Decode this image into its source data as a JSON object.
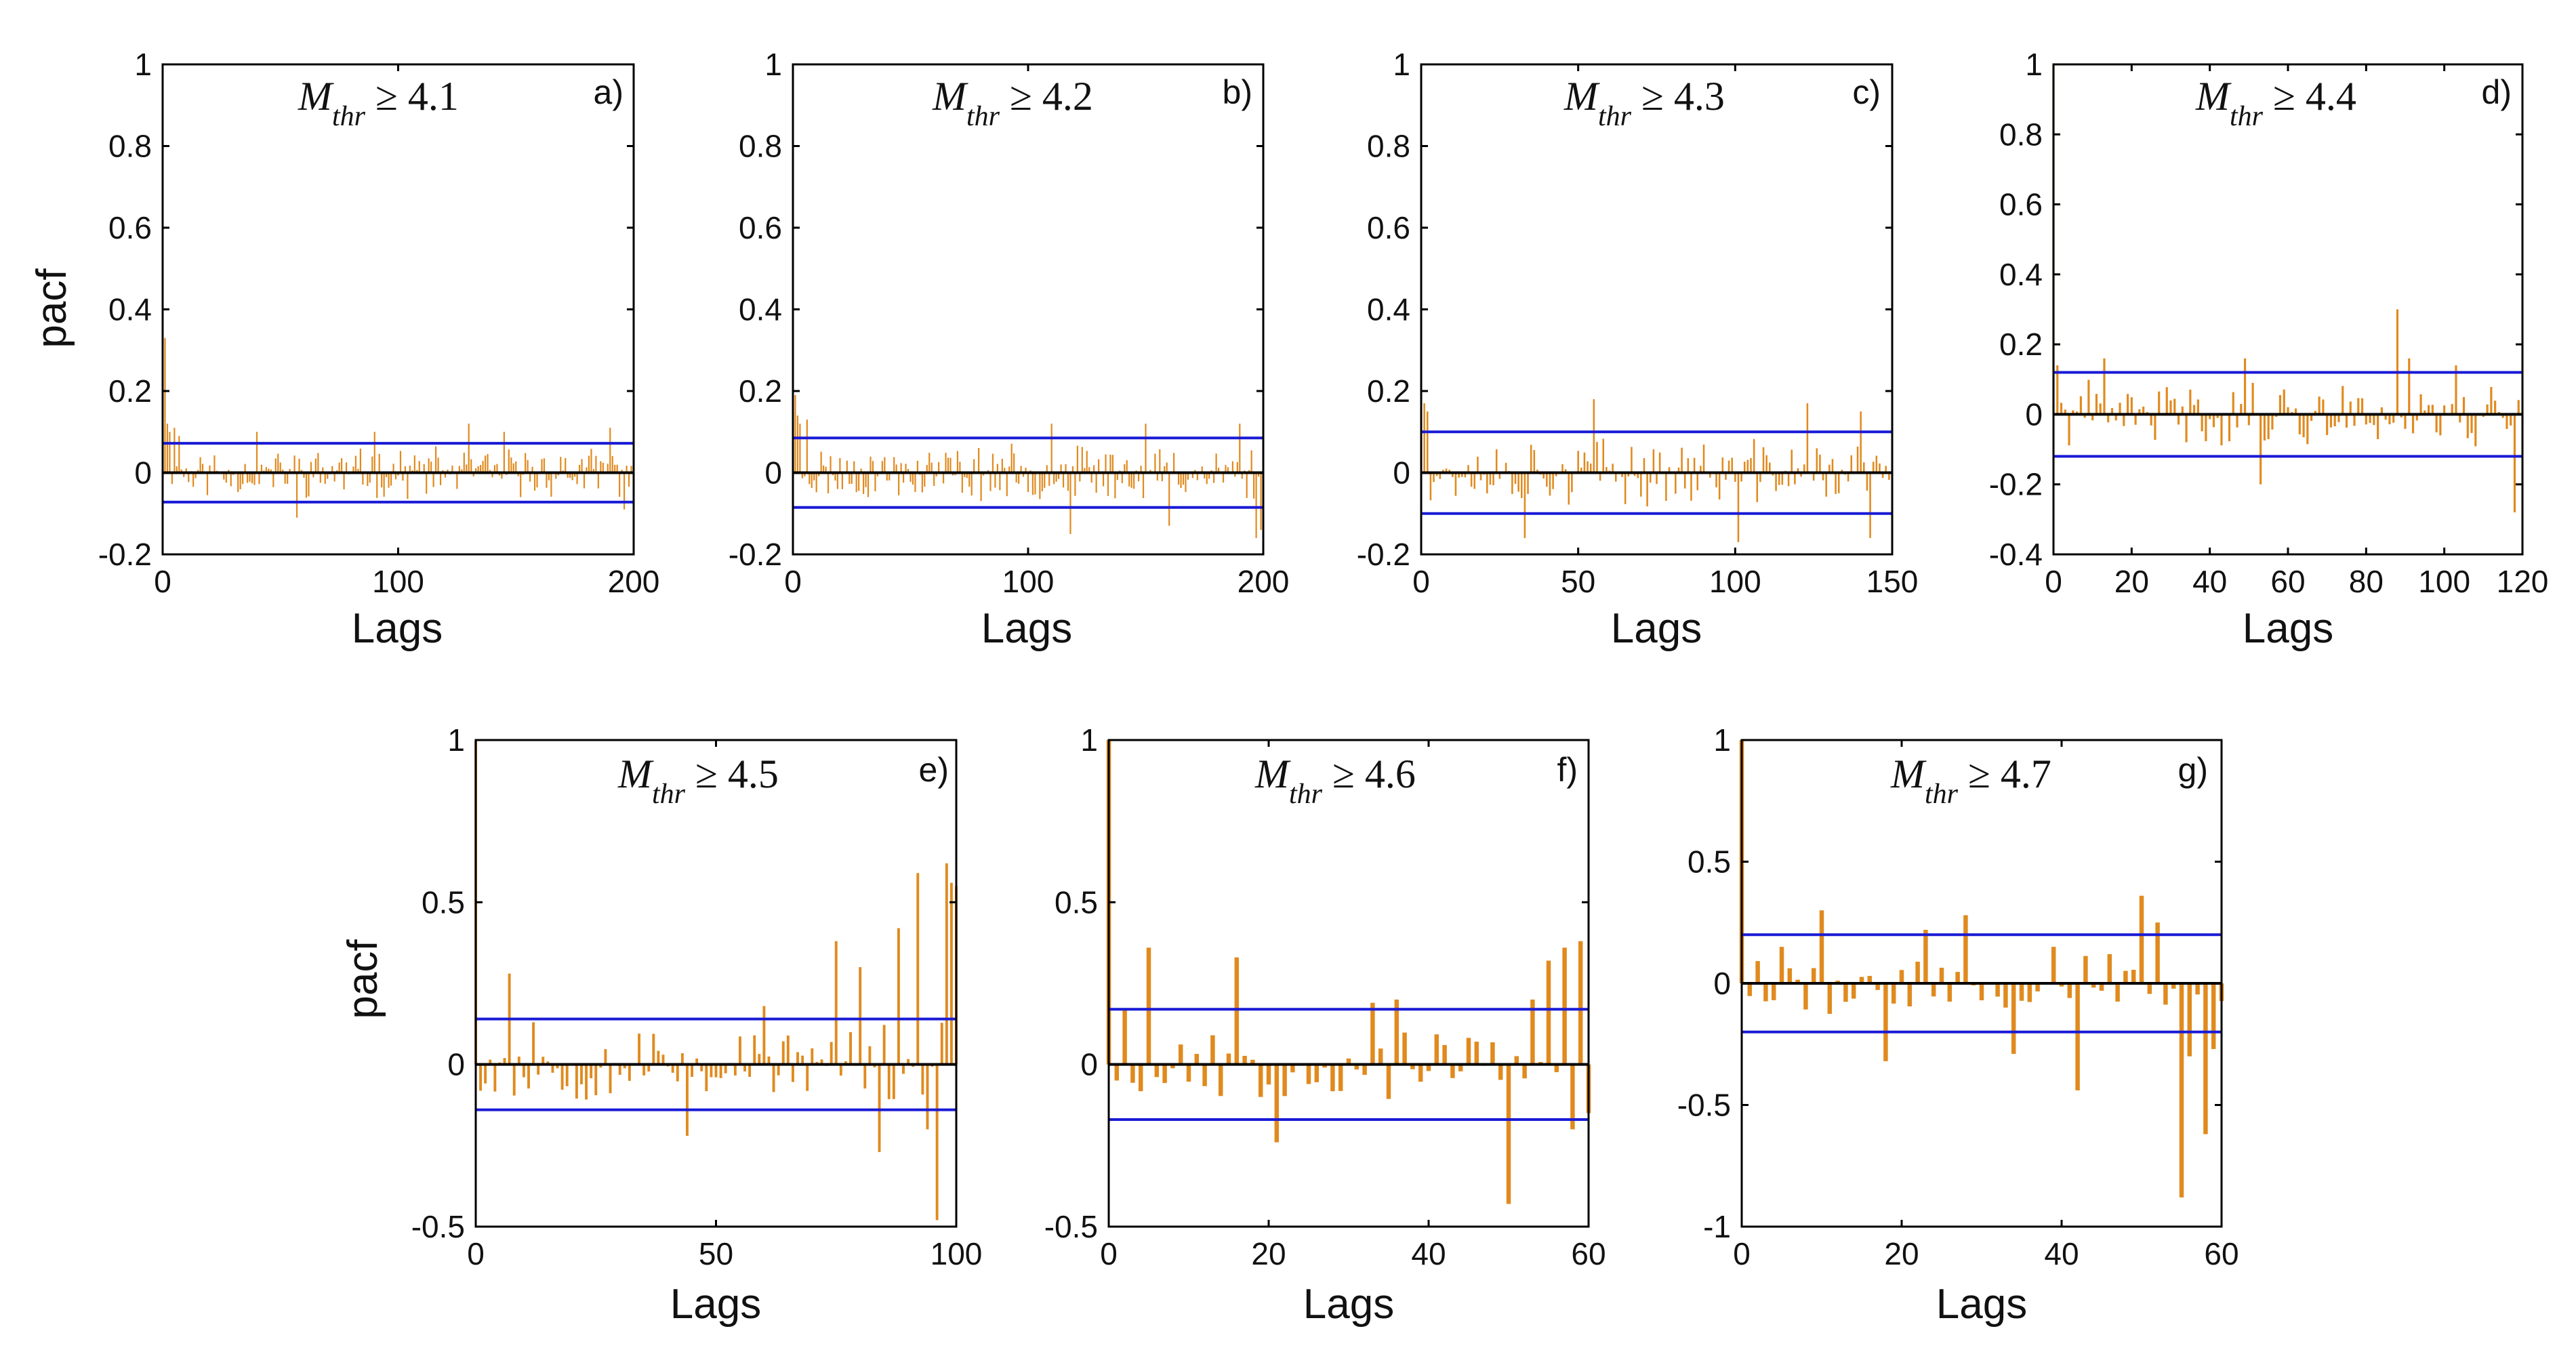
{
  "figure": {
    "ylabel": "pacf",
    "xlabel": "Lags"
  },
  "colors": {
    "bars": "#E08A1E",
    "bounds": "#1A1AD6",
    "axes": "#000000",
    "zero": "#000000"
  },
  "chart_data": [
    {
      "type": "bar",
      "panel_label": "a)",
      "title_sym": "M",
      "title_sub": "thr",
      "title_rest": " ≥ 4.1",
      "xlabel": "Lags",
      "ylabel": "pacf",
      "show_ylabel": true,
      "xlim": [
        0,
        200
      ],
      "ylim": [
        -0.2,
        1
      ],
      "xticks": [
        0,
        100,
        200
      ],
      "xtick_labels": [
        "0",
        "100",
        "200"
      ],
      "yticks": [
        -0.2,
        0,
        0.2,
        0.4,
        0.6,
        0.8,
        1
      ],
      "ytick_labels": [
        "-0.2",
        "0",
        "0.2",
        "0.4",
        "0.6",
        "0.8",
        "1"
      ],
      "n_lags": 200,
      "lag0": 1.0,
      "conf_bound": 0.072,
      "seed": 11,
      "amp": 0.045,
      "peaks": [
        [
          1,
          0.33
        ],
        [
          2,
          0.12
        ],
        [
          3,
          0.1
        ],
        [
          5,
          0.11
        ],
        [
          7,
          0.09
        ],
        [
          40,
          0.1
        ],
        [
          57,
          -0.11
        ],
        [
          90,
          0.1
        ],
        [
          130,
          0.12
        ],
        [
          145,
          0.1
        ],
        [
          190,
          0.11
        ],
        [
          196,
          -0.09
        ]
      ]
    },
    {
      "type": "bar",
      "panel_label": "b)",
      "title_sym": "M",
      "title_sub": "thr",
      "title_rest": " ≥ 4.2",
      "xlabel": "Lags",
      "ylabel": "pacf",
      "show_ylabel": false,
      "xlim": [
        0,
        200
      ],
      "ylim": [
        -0.2,
        1
      ],
      "xticks": [
        0,
        100,
        200
      ],
      "xtick_labels": [
        "0",
        "100",
        "200"
      ],
      "yticks": [
        -0.2,
        0,
        0.2,
        0.4,
        0.6,
        0.8,
        1
      ],
      "ytick_labels": [
        "-0.2",
        "0",
        "0.2",
        "0.4",
        "0.6",
        "0.8",
        "1"
      ],
      "n_lags": 200,
      "lag0": 1.0,
      "conf_bound": 0.085,
      "seed": 23,
      "amp": 0.05,
      "peaks": [
        [
          1,
          0.19
        ],
        [
          2,
          0.14
        ],
        [
          3,
          0.12
        ],
        [
          6,
          0.13
        ],
        [
          110,
          0.12
        ],
        [
          118,
          -0.15
        ],
        [
          150,
          0.12
        ],
        [
          160,
          -0.13
        ],
        [
          190,
          0.12
        ],
        [
          197,
          -0.16
        ],
        [
          199,
          -0.14
        ]
      ]
    },
    {
      "type": "bar",
      "panel_label": "c)",
      "title_sym": "M",
      "title_sub": "thr",
      "title_rest": " ≥ 4.3",
      "xlabel": "Lags",
      "ylabel": "pacf",
      "show_ylabel": false,
      "xlim": [
        0,
        150
      ],
      "ylim": [
        -0.2,
        1
      ],
      "xticks": [
        0,
        50,
        100,
        150
      ],
      "xtick_labels": [
        "0",
        "50",
        "100",
        "150"
      ],
      "yticks": [
        -0.2,
        0,
        0.2,
        0.4,
        0.6,
        0.8,
        1
      ],
      "ytick_labels": [
        "-0.2",
        "0",
        "0.2",
        "0.4",
        "0.6",
        "0.8",
        "1"
      ],
      "n_lags": 150,
      "lag0": 1.0,
      "conf_bound": 0.1,
      "seed": 37,
      "amp": 0.06,
      "peaks": [
        [
          1,
          0.17
        ],
        [
          2,
          0.15
        ],
        [
          33,
          -0.16
        ],
        [
          55,
          0.18
        ],
        [
          101,
          -0.17
        ],
        [
          123,
          0.17
        ],
        [
          140,
          0.15
        ],
        [
          143,
          -0.16
        ]
      ]
    },
    {
      "type": "bar",
      "panel_label": "d)",
      "title_sym": "M",
      "title_sub": "thr",
      "title_rest": " ≥ 4.4",
      "xlabel": "Lags",
      "ylabel": "pacf",
      "show_ylabel": false,
      "xlim": [
        0,
        120
      ],
      "ylim": [
        -0.4,
        1
      ],
      "xticks": [
        0,
        20,
        40,
        60,
        80,
        100,
        120
      ],
      "xtick_labels": [
        "0",
        "20",
        "40",
        "60",
        "80",
        "100",
        "120"
      ],
      "yticks": [
        -0.4,
        -0.2,
        0,
        0.2,
        0.4,
        0.6,
        0.8,
        1
      ],
      "ytick_labels": [
        "-0.4",
        "-0.2",
        "0",
        "0.2",
        "0.4",
        "0.6",
        "0.8",
        "1"
      ],
      "n_lags": 120,
      "lag0": 1.0,
      "conf_bound": 0.12,
      "seed": 41,
      "amp": 0.07,
      "peaks": [
        [
          1,
          0.14
        ],
        [
          13,
          0.16
        ],
        [
          49,
          0.16
        ],
        [
          53,
          -0.2
        ],
        [
          88,
          0.3
        ],
        [
          91,
          0.16
        ],
        [
          103,
          0.14
        ],
        [
          118,
          -0.28
        ]
      ]
    },
    {
      "type": "bar",
      "panel_label": "e)",
      "title_sym": "M",
      "title_sub": "thr",
      "title_rest": " ≥ 4.5",
      "xlabel": "Lags",
      "ylabel": "pacf",
      "show_ylabel": true,
      "xlim": [
        0,
        100
      ],
      "ylim": [
        -0.5,
        1
      ],
      "xticks": [
        0,
        50,
        100
      ],
      "xtick_labels": [
        "0",
        "50",
        "100"
      ],
      "yticks": [
        -0.5,
        0,
        0.5,
        1
      ],
      "ytick_labels": [
        "-0.5",
        "0",
        "0.5",
        "1"
      ],
      "n_lags": 100,
      "lag0": 1.0,
      "conf_bound": 0.14,
      "seed": 53,
      "amp": 0.09,
      "peaks": [
        [
          7,
          0.28
        ],
        [
          12,
          0.13
        ],
        [
          44,
          -0.22
        ],
        [
          60,
          0.18
        ],
        [
          75,
          0.38
        ],
        [
          80,
          0.3
        ],
        [
          84,
          -0.27
        ],
        [
          88,
          0.42
        ],
        [
          92,
          0.59
        ],
        [
          94,
          -0.2
        ],
        [
          96,
          -0.48
        ],
        [
          98,
          0.62
        ],
        [
          99,
          0.56
        ],
        [
          100,
          0.55
        ]
      ]
    },
    {
      "type": "bar",
      "panel_label": "f)",
      "title_sym": "M",
      "title_sub": "thr",
      "title_rest": " ≥ 4.6",
      "xlabel": "Lags",
      "ylabel": "pacf",
      "show_ylabel": false,
      "xlim": [
        0,
        60
      ],
      "ylim": [
        -0.5,
        1
      ],
      "xticks": [
        0,
        20,
        40,
        60
      ],
      "xtick_labels": [
        "0",
        "20",
        "40",
        "60"
      ],
      "yticks": [
        -0.5,
        0,
        0.5,
        1
      ],
      "ytick_labels": [
        "-0.5",
        "0",
        "0.5",
        "1"
      ],
      "n_lags": 60,
      "lag0": 1.0,
      "conf_bound": 0.17,
      "seed": 67,
      "amp": 0.08,
      "peaks": [
        [
          2,
          0.17
        ],
        [
          5,
          0.36
        ],
        [
          16,
          0.33
        ],
        [
          21,
          -0.24
        ],
        [
          33,
          0.19
        ],
        [
          36,
          0.2
        ],
        [
          50,
          -0.43
        ],
        [
          53,
          0.2
        ],
        [
          55,
          0.32
        ],
        [
          57,
          0.36
        ],
        [
          58,
          -0.2
        ],
        [
          59,
          0.38
        ],
        [
          60,
          -0.15
        ]
      ]
    },
    {
      "type": "bar",
      "panel_label": "g)",
      "title_sym": "M",
      "title_sub": "thr",
      "title_rest": " ≥ 4.7",
      "xlabel": "Lags",
      "ylabel": "pacf",
      "show_ylabel": false,
      "xlim": [
        0,
        60
      ],
      "ylim": [
        -1,
        1
      ],
      "xticks": [
        0,
        20,
        40,
        60
      ],
      "xtick_labels": [
        "0",
        "20",
        "40",
        "60"
      ],
      "yticks": [
        -1,
        -0.5,
        0,
        0.5,
        1
      ],
      "ytick_labels": [
        "-1",
        "-0.5",
        "0",
        "0.5",
        "1"
      ],
      "n_lags": 60,
      "lag0": 1.0,
      "conf_bound": 0.2,
      "seed": 79,
      "amp": 0.1,
      "peaks": [
        [
          5,
          0.15
        ],
        [
          10,
          0.3
        ],
        [
          18,
          -0.32
        ],
        [
          23,
          0.22
        ],
        [
          28,
          0.28
        ],
        [
          34,
          -0.29
        ],
        [
          39,
          0.15
        ],
        [
          42,
          -0.44
        ],
        [
          46,
          0.12
        ],
        [
          50,
          0.36
        ],
        [
          52,
          0.25
        ],
        [
          55,
          -0.88
        ],
        [
          56,
          -0.3
        ],
        [
          58,
          -0.62
        ],
        [
          59,
          -0.27
        ]
      ]
    }
  ]
}
